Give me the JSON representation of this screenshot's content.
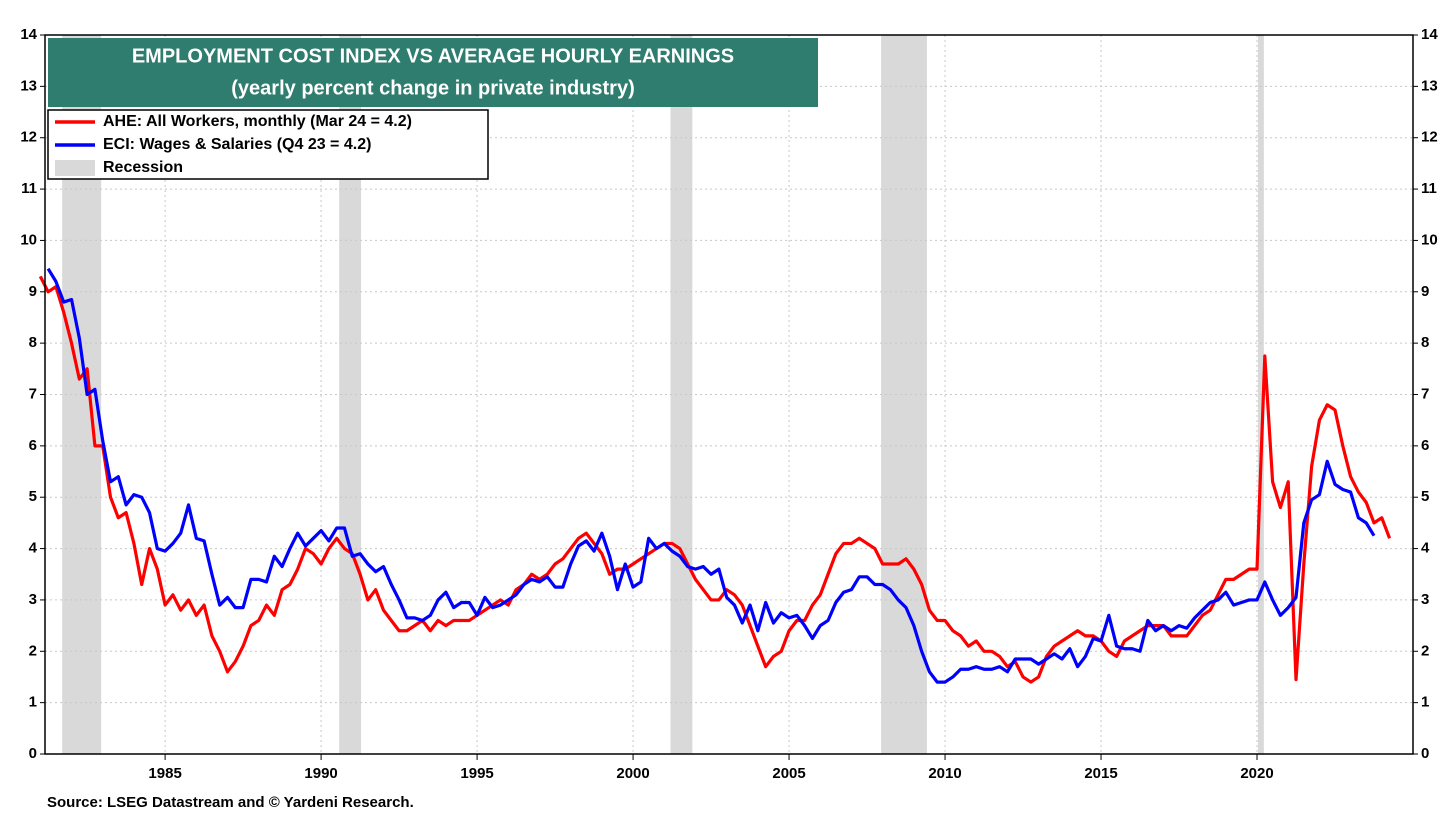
{
  "chart_data": {
    "type": "line",
    "title": "EMPLOYMENT COST INDEX  VS AVERAGE HOURLY EARNINGS",
    "subtitle": "(yearly percent change in private industry)",
    "source": "Source: LSEG Datastream and © Yardeni Research.",
    "xlim": [
      1981.15,
      2025.0
    ],
    "ylim": [
      0,
      14
    ],
    "xticks": [
      1985,
      1990,
      1995,
      2000,
      2005,
      2010,
      2015,
      2020
    ],
    "yticks": [
      0,
      1,
      2,
      3,
      4,
      5,
      6,
      7,
      8,
      9,
      10,
      11,
      12,
      13,
      14
    ],
    "grid": true,
    "legend": "upper left",
    "recessions": {
      "name": "Recession",
      "color": "#d9d9d9",
      "spans": [
        [
          1981.7,
          1982.95
        ],
        [
          1990.58,
          1991.28
        ],
        [
          2001.2,
          2001.9
        ],
        [
          2007.95,
          2009.42
        ],
        [
          2020.03,
          2020.22
        ]
      ]
    },
    "series": [
      {
        "name": "AHE: All Workers, monthly  (Mar 24 = 4.2)",
        "color": "#ff0000",
        "x": [
          1981,
          1981.25,
          1981.5,
          1981.75,
          1982,
          1982.25,
          1982.5,
          1982.75,
          1983,
          1983.25,
          1983.5,
          1983.75,
          1984,
          1984.25,
          1984.5,
          1984.75,
          1985,
          1985.25,
          1985.5,
          1985.75,
          1986,
          1986.25,
          1986.5,
          1986.75,
          1987,
          1987.25,
          1987.5,
          1987.75,
          1988,
          1988.25,
          1988.5,
          1988.75,
          1989,
          1989.25,
          1989.5,
          1989.75,
          1990,
          1990.25,
          1990.5,
          1990.75,
          1991,
          1991.25,
          1991.5,
          1991.75,
          1992,
          1992.25,
          1992.5,
          1992.75,
          1993,
          1993.25,
          1993.5,
          1993.75,
          1994,
          1994.25,
          1994.5,
          1994.75,
          1995,
          1995.25,
          1995.5,
          1995.75,
          1996,
          1996.25,
          1996.5,
          1996.75,
          1997,
          1997.25,
          1997.5,
          1997.75,
          1998,
          1998.25,
          1998.5,
          1998.75,
          1999,
          1999.25,
          1999.5,
          1999.75,
          2000,
          2000.25,
          2000.5,
          2000.75,
          2001,
          2001.25,
          2001.5,
          2001.75,
          2002,
          2002.25,
          2002.5,
          2002.75,
          2003,
          2003.25,
          2003.5,
          2003.75,
          2004,
          2004.25,
          2004.5,
          2004.75,
          2005,
          2005.25,
          2005.5,
          2005.75,
          2006,
          2006.25,
          2006.5,
          2006.75,
          2007,
          2007.25,
          2007.5,
          2007.75,
          2008,
          2008.25,
          2008.5,
          2008.75,
          2009,
          2009.25,
          2009.5,
          2009.75,
          2010,
          2010.25,
          2010.5,
          2010.75,
          2011,
          2011.25,
          2011.5,
          2011.75,
          2012,
          2012.25,
          2012.5,
          2012.75,
          2013,
          2013.25,
          2013.5,
          2013.75,
          2014,
          2014.25,
          2014.5,
          2014.75,
          2015,
          2015.25,
          2015.5,
          2015.75,
          2016,
          2016.25,
          2016.5,
          2016.75,
          2017,
          2017.25,
          2017.5,
          2017.75,
          2018,
          2018.25,
          2018.5,
          2018.75,
          2019,
          2019.25,
          2019.5,
          2019.75,
          2020,
          2020.25,
          2020.5,
          2020.75,
          2021,
          2021.25,
          2021.5,
          2021.75,
          2022,
          2022.25,
          2022.5,
          2022.75,
          2023,
          2023.25,
          2023.5,
          2023.75,
          2024,
          2024.25
        ],
        "values": [
          9.3,
          9.0,
          9.1,
          8.6,
          8.0,
          7.3,
          7.5,
          6.0,
          6.0,
          5.0,
          4.6,
          4.7,
          4.1,
          3.3,
          4.0,
          3.6,
          2.9,
          3.1,
          2.8,
          3.0,
          2.7,
          2.9,
          2.3,
          2.0,
          1.6,
          1.8,
          2.1,
          2.5,
          2.6,
          2.9,
          2.7,
          3.2,
          3.3,
          3.6,
          4.0,
          3.9,
          3.7,
          4.0,
          4.2,
          4.0,
          3.9,
          3.5,
          3.0,
          3.2,
          2.8,
          2.6,
          2.4,
          2.4,
          2.5,
          2.6,
          2.4,
          2.6,
          2.5,
          2.6,
          2.6,
          2.6,
          2.7,
          2.8,
          2.9,
          3.0,
          2.9,
          3.2,
          3.3,
          3.5,
          3.4,
          3.5,
          3.7,
          3.8,
          4.0,
          4.2,
          4.3,
          4.1,
          3.9,
          3.5,
          3.6,
          3.6,
          3.7,
          3.8,
          3.9,
          4.0,
          4.1,
          4.1,
          4.0,
          3.7,
          3.4,
          3.2,
          3.0,
          3.0,
          3.2,
          3.1,
          2.9,
          2.5,
          2.1,
          1.7,
          1.9,
          2.0,
          2.4,
          2.6,
          2.6,
          2.9,
          3.1,
          3.5,
          3.9,
          4.1,
          4.1,
          4.2,
          4.1,
          4.0,
          3.7,
          3.7,
          3.7,
          3.8,
          3.6,
          3.3,
          2.8,
          2.6,
          2.6,
          2.4,
          2.3,
          2.1,
          2.2,
          2.0,
          2.0,
          1.9,
          1.7,
          1.8,
          1.5,
          1.4,
          1.5,
          1.9,
          2.1,
          2.2,
          2.3,
          2.4,
          2.3,
          2.3,
          2.2,
          2.0,
          1.9,
          2.2,
          2.3,
          2.4,
          2.5,
          2.5,
          2.5,
          2.3,
          2.3,
          2.3,
          2.5,
          2.7,
          2.8,
          3.1,
          3.4,
          3.4,
          3.5,
          3.6,
          3.6,
          7.75,
          5.3,
          4.8,
          5.3,
          1.45,
          3.7,
          5.6,
          6.5,
          6.8,
          6.7,
          6.0,
          5.4,
          5.1,
          4.9,
          4.5,
          4.6,
          4.2
        ]
      },
      {
        "name": "ECI: Wages & Salaries (Q4 23 = 4.2)",
        "color": "#0000ff",
        "x": [
          1981.25,
          1981.5,
          1981.75,
          1982,
          1982.25,
          1982.5,
          1982.75,
          1983,
          1983.25,
          1983.5,
          1983.75,
          1984,
          1984.25,
          1984.5,
          1984.75,
          1985,
          1985.25,
          1985.5,
          1985.75,
          1986,
          1986.25,
          1986.5,
          1986.75,
          1987,
          1987.25,
          1987.5,
          1987.75,
          1988,
          1988.25,
          1988.5,
          1988.75,
          1989,
          1989.25,
          1989.5,
          1989.75,
          1990,
          1990.25,
          1990.5,
          1990.75,
          1991,
          1991.25,
          1991.5,
          1991.75,
          1992,
          1992.25,
          1992.5,
          1992.75,
          1993,
          1993.25,
          1993.5,
          1993.75,
          1994,
          1994.25,
          1994.5,
          1994.75,
          1995,
          1995.25,
          1995.5,
          1995.75,
          1996,
          1996.25,
          1996.5,
          1996.75,
          1997,
          1997.25,
          1997.5,
          1997.75,
          1998,
          1998.25,
          1998.5,
          1998.75,
          1999,
          1999.25,
          1999.5,
          1999.75,
          2000,
          2000.25,
          2000.5,
          2000.75,
          2001,
          2001.25,
          2001.5,
          2001.75,
          2002,
          2002.25,
          2002.5,
          2002.75,
          2003,
          2003.25,
          2003.5,
          2003.75,
          2004,
          2004.25,
          2004.5,
          2004.75,
          2005,
          2005.25,
          2005.5,
          2005.75,
          2006,
          2006.25,
          2006.5,
          2006.75,
          2007,
          2007.25,
          2007.5,
          2007.75,
          2008,
          2008.25,
          2008.5,
          2008.75,
          2009,
          2009.25,
          2009.5,
          2009.75,
          2010,
          2010.25,
          2010.5,
          2010.75,
          2011,
          2011.25,
          2011.5,
          2011.75,
          2012,
          2012.25,
          2012.5,
          2012.75,
          2013,
          2013.25,
          2013.5,
          2013.75,
          2014,
          2014.25,
          2014.5,
          2014.75,
          2015,
          2015.25,
          2015.5,
          2015.75,
          2016,
          2016.25,
          2016.5,
          2016.75,
          2017,
          2017.25,
          2017.5,
          2017.75,
          2018,
          2018.25,
          2018.5,
          2018.75,
          2019,
          2019.25,
          2019.5,
          2019.75,
          2020,
          2020.25,
          2020.5,
          2020.75,
          2021,
          2021.25,
          2021.5,
          2021.75,
          2022,
          2022.25,
          2022.5,
          2022.75,
          2023,
          2023.25,
          2023.5,
          2023.75
        ],
        "values": [
          9.45,
          9.2,
          8.8,
          8.85,
          8.1,
          7.0,
          7.1,
          6.1,
          5.3,
          5.4,
          4.85,
          5.05,
          5.0,
          4.7,
          4.0,
          3.95,
          4.1,
          4.3,
          4.85,
          4.2,
          4.15,
          3.5,
          2.9,
          3.05,
          2.85,
          2.85,
          3.4,
          3.4,
          3.35,
          3.85,
          3.65,
          4.0,
          4.3,
          4.05,
          4.2,
          4.35,
          4.15,
          4.4,
          4.4,
          3.85,
          3.9,
          3.7,
          3.55,
          3.65,
          3.3,
          3.0,
          2.65,
          2.65,
          2.6,
          2.7,
          3.0,
          3.15,
          2.85,
          2.95,
          2.95,
          2.7,
          3.05,
          2.85,
          2.9,
          3.0,
          3.1,
          3.3,
          3.4,
          3.35,
          3.45,
          3.25,
          3.25,
          3.7,
          4.05,
          4.15,
          3.95,
          4.3,
          3.85,
          3.2,
          3.7,
          3.25,
          3.35,
          4.2,
          4.0,
          4.1,
          3.95,
          3.85,
          3.65,
          3.6,
          3.65,
          3.5,
          3.6,
          3.05,
          2.9,
          2.55,
          2.9,
          2.4,
          2.95,
          2.55,
          2.75,
          2.65,
          2.7,
          2.5,
          2.25,
          2.5,
          2.6,
          2.95,
          3.15,
          3.2,
          3.45,
          3.45,
          3.3,
          3.3,
          3.2,
          3.0,
          2.85,
          2.5,
          2.0,
          1.6,
          1.4,
          1.4,
          1.5,
          1.65,
          1.65,
          1.7,
          1.65,
          1.65,
          1.7,
          1.6,
          1.85,
          1.85,
          1.85,
          1.75,
          1.85,
          1.95,
          1.85,
          2.05,
          1.7,
          1.9,
          2.25,
          2.2,
          2.7,
          2.1,
          2.05,
          2.05,
          2.0,
          2.6,
          2.4,
          2.5,
          2.4,
          2.5,
          2.45,
          2.65,
          2.8,
          2.95,
          3.0,
          3.15,
          2.9,
          2.95,
          3.0,
          3.0,
          3.35,
          3.0,
          2.7,
          2.85,
          3.05,
          4.5,
          4.95,
          5.05,
          5.7,
          5.25,
          5.15,
          5.1,
          4.6,
          4.5,
          4.25
        ]
      }
    ]
  }
}
